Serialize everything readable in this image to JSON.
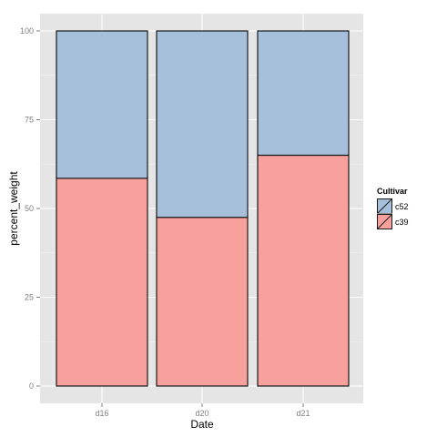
{
  "chart_data": {
    "type": "bar",
    "stacked": true,
    "categories": [
      "d16",
      "d20",
      "d21"
    ],
    "series": [
      {
        "name": "c39",
        "values": [
          58.5,
          47.5,
          65.0
        ]
      },
      {
        "name": "c52",
        "values": [
          41.5,
          52.5,
          35.0
        ]
      }
    ],
    "xlabel": "Date",
    "ylabel": "percent_weight",
    "ylim": [
      0,
      100
    ],
    "yticks": [
      0,
      25,
      50,
      75,
      100
    ],
    "legend": {
      "title": "Cultivar",
      "placement": "right",
      "entries": [
        "c52",
        "c39"
      ]
    },
    "grid": true,
    "colors": {
      "c39": "#f8a19c",
      "c52": "#a6bfdb",
      "panel": "#e5e5e5",
      "grid": "#ffffff",
      "bar_outline": "#1a1a1a"
    }
  }
}
